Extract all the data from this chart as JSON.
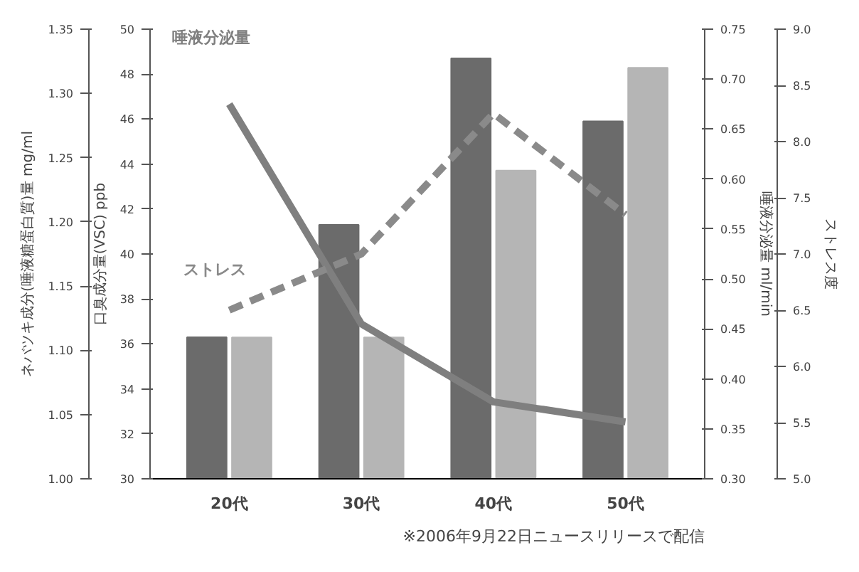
{
  "chart_data": [
    {
      "type": "bar",
      "categories": [
        "20代",
        "30代",
        "40代",
        "50代"
      ],
      "ylabel": "口臭成分量(VSC) ppb",
      "y2label": "ネバツキ成分(唾液糖蛋白質)量 mg/ml",
      "ylim": [
        30,
        50
      ],
      "yticks": [
        30,
        32,
        34,
        36,
        38,
        40,
        42,
        44,
        46,
        48,
        50
      ],
      "y2lim": [
        1.0,
        1.35
      ],
      "y2ticks": [
        {
          "value": 1.0,
          "label": "1.00"
        },
        1.05,
        {
          "value": 1.1,
          "label": "1.10"
        },
        1.15,
        {
          "value": 1.2,
          "label": "1.20"
        },
        1.25,
        {
          "value": 1.3,
          "label": "1.30"
        },
        1.35
      ],
      "series": [
        {
          "color": "#6b6b6b",
          "values": [
            36.3,
            41.3,
            48.7,
            45.9
          ]
        },
        {
          "axis": "y2",
          "color": "#b5b5b5",
          "values": [
            1.11,
            1.11,
            1.24,
            1.32
          ]
        }
      ],
      "annotations": [
        "※2006年9月22日ニュースリリースで配信"
      ],
      "grid": false,
      "legend": false
    },
    {
      "type": "line",
      "categories": [
        null,
        null,
        null,
        null
      ],
      "ylabel": "唾液分泌量 ml/min",
      "y2label": "ストレス度",
      "ylim": [
        0.3,
        0.75
      ],
      "yticks": [
        {
          "value": 0.3,
          "label": "0.30"
        },
        0.35,
        {
          "value": 0.4,
          "label": "0.40"
        },
        0.45,
        {
          "value": 0.5,
          "label": "0.50"
        },
        0.55,
        {
          "value": 0.6,
          "label": "0.60"
        },
        0.65,
        {
          "value": 0.7,
          "label": "0.70"
        },
        0.75
      ],
      "y2lim": [
        5,
        9
      ],
      "y2ticks": [
        {
          "value": 5,
          "label": "5.0"
        },
        5.5,
        {
          "value": 6,
          "label": "6.0"
        },
        6.5,
        {
          "value": 7,
          "label": "7.0"
        },
        7.5,
        {
          "value": 8,
          "label": "8.0"
        },
        8.5,
        {
          "value": 9,
          "label": "9.0"
        }
      ],
      "series": [
        {
          "name": "唾液分泌量",
          "color": "#7f7f7f",
          "line_style": "solid",
          "values": [
            0.675,
            0.455,
            0.377,
            0.357
          ]
        },
        {
          "axis": "y2",
          "name": "ストレス",
          "color": "#8a8a8a",
          "line_style": "dashed",
          "values": [
            6.5,
            7.0,
            8.25,
            7.35
          ]
        }
      ],
      "tick_labels": "y",
      "grid": false,
      "legend": false,
      "marker": "none"
    }
  ]
}
